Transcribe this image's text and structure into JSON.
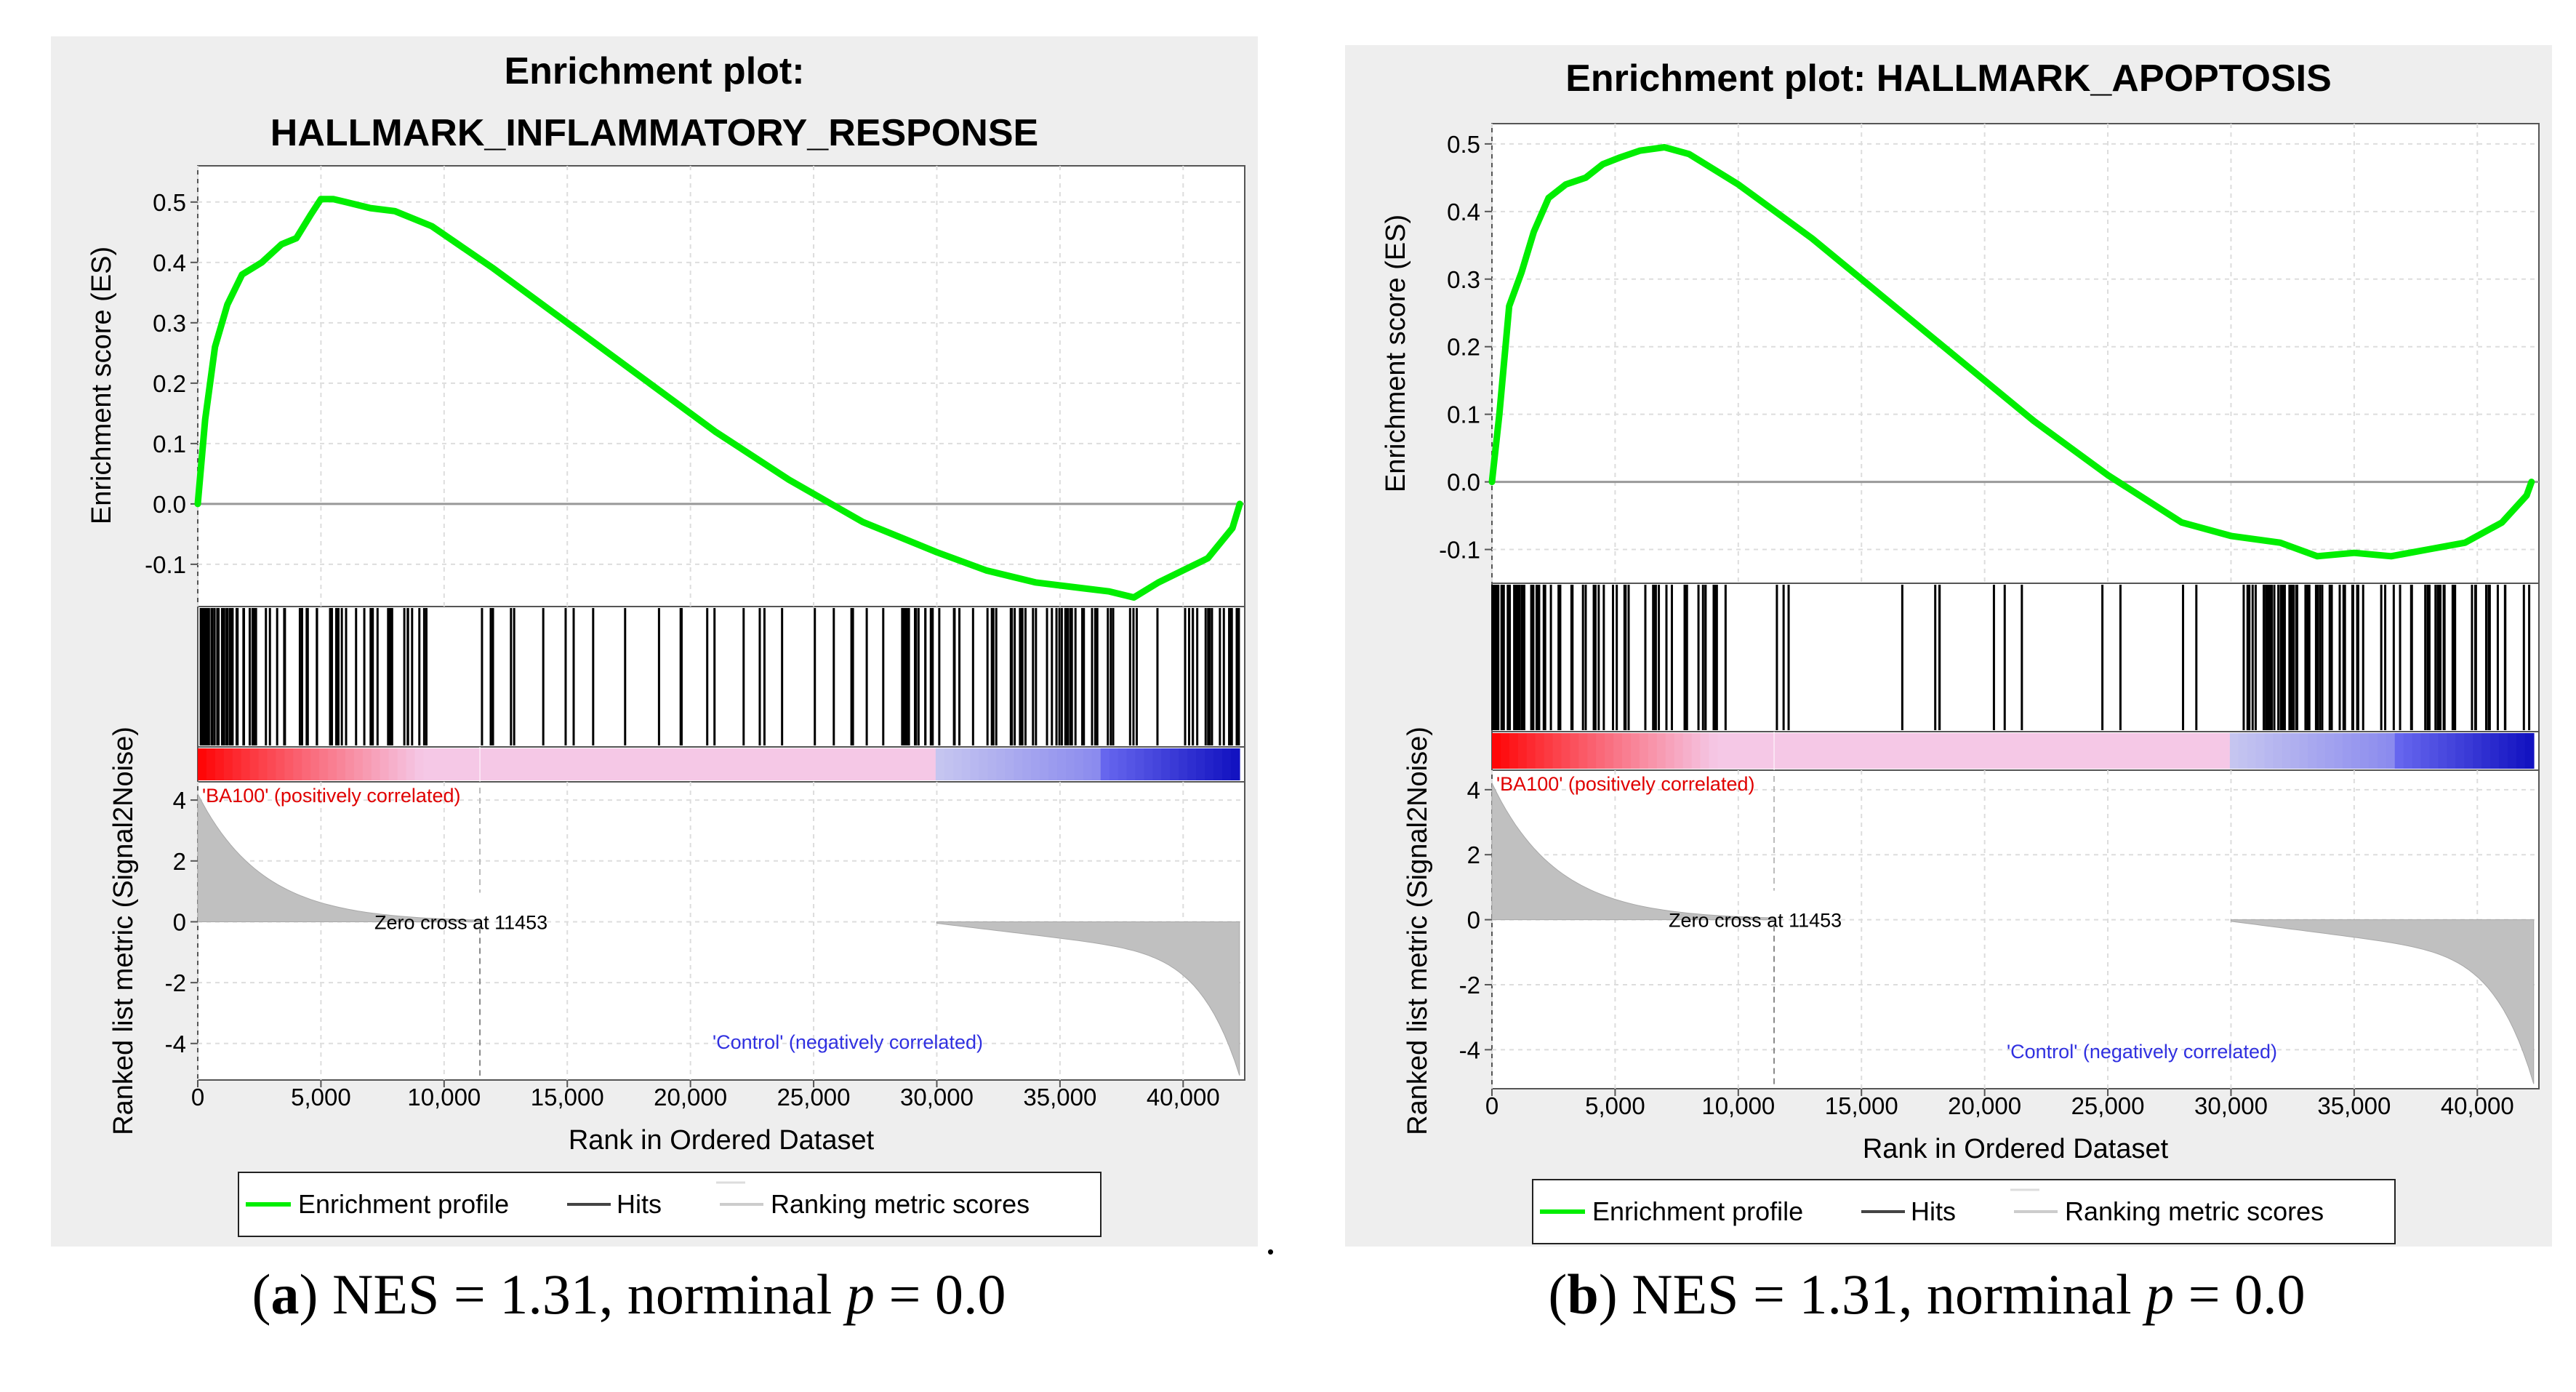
{
  "figure": {
    "trailing_mark": ".",
    "colors": {
      "profile": "#00ee00",
      "hits": "#000000",
      "ranking": "#c0c0c0",
      "positive": "#ff0000",
      "negative": "#0000ff",
      "pink": "#f5c8e6",
      "lavender": "#c8c8f0"
    }
  },
  "panels": [
    {
      "id": "a",
      "title_lines": [
        "Enrichment plot:",
        "HALLMARK_INFLAMMATORY_RESPONSE"
      ],
      "caption": {
        "letter": "a",
        "text_before": "NES = 1.31, norminal ",
        "p_symbol": "p",
        "text_after": " = 0.0"
      },
      "legend": {
        "profile": "Enrichment profile",
        "hits": "Hits",
        "ranking": "Ranking metric scores"
      },
      "chart_data": {
        "type": "line",
        "title": "Enrichment plot: HALLMARK_INFLAMMATORY_RESPONSE",
        "xlabel": "Rank in Ordered Dataset",
        "ylabel": "Enrichment score (ES)",
        "ylabel_bottom": "Ranked list metric (Signal2Noise)",
        "xlim": [
          0,
          42500
        ],
        "ylim": [
          -0.17,
          0.56
        ],
        "y_ticks": [
          "0.5",
          "0.4",
          "0.3",
          "0.2",
          "0.1",
          "0.0",
          "-0.1"
        ],
        "y_tick_values": [
          0.5,
          0.4,
          0.3,
          0.2,
          0.1,
          0.0,
          -0.1
        ],
        "x_ticks": [
          "0",
          "5,000",
          "10,000",
          "15,000",
          "20,000",
          "25,000",
          "30,000",
          "35,000",
          "40,000"
        ],
        "x_tick_values": [
          0,
          5000,
          10000,
          15000,
          20000,
          25000,
          30000,
          35000,
          40000
        ],
        "metric_ticks": [
          "4",
          "2",
          "0",
          "-2",
          "-4"
        ],
        "metric_tick_values": [
          4,
          2,
          0,
          -2,
          -4
        ],
        "metric_ylim": [
          -5.2,
          4.6
        ],
        "profile_x": [
          0,
          300,
          700,
          1200,
          1800,
          2600,
          3400,
          4000,
          4600,
          5000,
          5500,
          6000,
          7000,
          8000,
          9500,
          12000,
          15000,
          18000,
          21000,
          24000,
          27000,
          30000,
          32000,
          34000,
          36000,
          37000,
          38000,
          39000,
          40000,
          41000,
          42000,
          42300
        ],
        "profile_y": [
          0.0,
          0.14,
          0.26,
          0.33,
          0.38,
          0.4,
          0.43,
          0.44,
          0.48,
          0.505,
          0.505,
          0.5,
          0.49,
          0.485,
          0.46,
          0.39,
          0.3,
          0.21,
          0.12,
          0.04,
          -0.03,
          -0.08,
          -0.11,
          -0.13,
          -0.14,
          -0.145,
          -0.155,
          -0.13,
          -0.11,
          -0.09,
          -0.04,
          0.0
        ],
        "hit_ranges": [
          [
            0,
            2400,
            45
          ],
          [
            2600,
            9500,
            38
          ],
          [
            11000,
            13500,
            5
          ],
          [
            14000,
            17500,
            5
          ],
          [
            18500,
            21000,
            5
          ],
          [
            22000,
            28500,
            10
          ],
          [
            28500,
            33000,
            22
          ],
          [
            33000,
            38500,
            32
          ],
          [
            38500,
            42300,
            18
          ]
        ],
        "positive_label": "'BA100' (positively correlated)",
        "negative_label": "'Control' (negatively correlated)",
        "zero_cross_label": "Zero cross at 11453",
        "zero_cross": 11453,
        "metric_top": 4.2,
        "metric_pos_end": 11453,
        "metric_neg_start": 30000,
        "metric_bottom": -5.0
      }
    },
    {
      "id": "b",
      "title_lines": [
        "Enrichment plot: HALLMARK_APOPTOSIS"
      ],
      "caption": {
        "letter": "b",
        "text_before": "NES = 1.31, norminal ",
        "p_symbol": "p",
        "text_after": " = 0.0"
      },
      "legend": {
        "profile": "Enrichment profile",
        "hits": "Hits",
        "ranking": "Ranking metric scores"
      },
      "chart_data": {
        "type": "line",
        "title": "Enrichment plot: HALLMARK_APOPTOSIS",
        "xlabel": "Rank in Ordered Dataset",
        "ylabel": "Enrichment score (ES)",
        "ylabel_bottom": "Ranked list metric (Signal2Noise)",
        "xlim": [
          0,
          42500
        ],
        "ylim": [
          -0.15,
          0.53
        ],
        "y_ticks": [
          "0.5",
          "0.4",
          "0.3",
          "0.2",
          "0.1",
          "0.0",
          "-0.1"
        ],
        "y_tick_values": [
          0.5,
          0.4,
          0.3,
          0.2,
          0.1,
          0.0,
          -0.1
        ],
        "x_ticks": [
          "0",
          "5,000",
          "10,000",
          "15,000",
          "20,000",
          "25,000",
          "30,000",
          "35,000",
          "40,000"
        ],
        "x_tick_values": [
          0,
          5000,
          10000,
          15000,
          20000,
          25000,
          30000,
          35000,
          40000
        ],
        "metric_ticks": [
          "4",
          "2",
          "0",
          "-2",
          "-4"
        ],
        "metric_tick_values": [
          4,
          2,
          0,
          -2,
          -4
        ],
        "metric_ylim": [
          -5.2,
          4.6
        ],
        "profile_x": [
          0,
          300,
          700,
          1200,
          1700,
          2300,
          3000,
          3800,
          4500,
          5200,
          6000,
          7000,
          8000,
          10000,
          13000,
          16000,
          19000,
          22000,
          25000,
          28000,
          30000,
          32000,
          33500,
          35000,
          36500,
          38000,
          39500,
          41000,
          42000,
          42200
        ],
        "profile_y": [
          0.0,
          0.1,
          0.26,
          0.31,
          0.37,
          0.42,
          0.44,
          0.45,
          0.47,
          0.48,
          0.49,
          0.495,
          0.485,
          0.44,
          0.36,
          0.27,
          0.18,
          0.09,
          0.01,
          -0.06,
          -0.08,
          -0.09,
          -0.11,
          -0.105,
          -0.11,
          -0.1,
          -0.09,
          -0.06,
          -0.02,
          0.0
        ],
        "hit_ranges": [
          [
            0,
            2200,
            40
          ],
          [
            2200,
            9500,
            40
          ],
          [
            10500,
            12500,
            3
          ],
          [
            15500,
            18200,
            4
          ],
          [
            19000,
            23000,
            3
          ],
          [
            24000,
            30000,
            4
          ],
          [
            30500,
            33000,
            28
          ],
          [
            33000,
            38500,
            32
          ],
          [
            38500,
            42200,
            18
          ]
        ],
        "positive_label": "'BA100' (positively correlated)",
        "negative_label": "'Control' (negatively correlated)",
        "zero_cross_label": "Zero cross at 11453",
        "zero_cross": 11453,
        "metric_top": 4.2,
        "metric_pos_end": 11453,
        "metric_neg_start": 30000,
        "metric_bottom": -5.0
      }
    }
  ]
}
